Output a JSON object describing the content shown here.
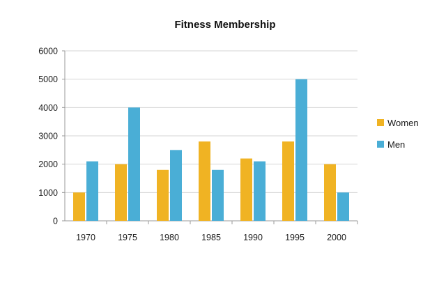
{
  "chart_data": {
    "type": "bar",
    "title": "Fitness Membership",
    "xlabel": "",
    "ylabel": "",
    "categories": [
      "1970",
      "1975",
      "1980",
      "1985",
      "1990",
      "1995",
      "2000"
    ],
    "series": [
      {
        "name": "Women",
        "color": "#f0b323",
        "values": [
          1000,
          2000,
          1800,
          2800,
          2200,
          2800,
          2000
        ]
      },
      {
        "name": "Men",
        "color": "#4aaed6",
        "values": [
          2100,
          4000,
          2500,
          1800,
          2100,
          5000,
          1000
        ]
      }
    ],
    "ylim": [
      0,
      6000
    ],
    "yticks": [
      "0",
      "1000",
      "2000",
      "3000",
      "4000",
      "5000",
      "6000"
    ],
    "grid": true,
    "legend_position": "right"
  }
}
